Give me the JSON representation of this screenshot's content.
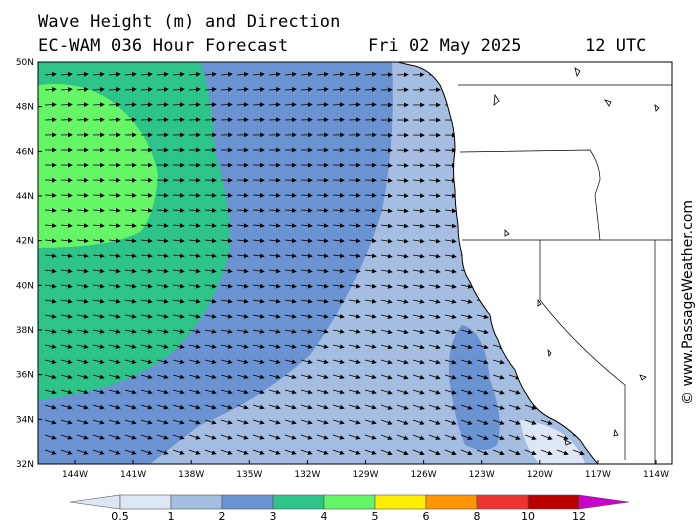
{
  "header": {
    "title": "Wave Height (m) and Direction",
    "subtitle": "EC-WAM 036 Hour Forecast",
    "date": "Fri 02 May 2025",
    "time": "12 UTC"
  },
  "map": {
    "lat_labels": [
      "50N",
      "48N",
      "46N",
      "44N",
      "42N",
      "40N",
      "38N",
      "36N",
      "34N",
      "32N"
    ],
    "lon_labels": [
      "144W",
      "141W",
      "138W",
      "135W",
      "132W",
      "129W",
      "126W",
      "123W",
      "120W",
      "117W",
      "114W"
    ],
    "colors": {
      "band_0_5_1": "#dce6f4",
      "band_1_2": "#a4bde0",
      "band_2_3": "#6b93d2",
      "band_3_4": "#2ec389",
      "band_4_5": "#66f566",
      "land": "#ffffff"
    }
  },
  "legend": {
    "labels": [
      "0.5",
      "1",
      "2",
      "3",
      "4",
      "5",
      "6",
      "8",
      "10",
      "12"
    ],
    "colors": [
      "#dce6f4",
      "#a4bde0",
      "#6b93d2",
      "#2ec389",
      "#66f566",
      "#ffee00",
      "#ff9500",
      "#ee3333",
      "#bb0000",
      "#cc00cc"
    ]
  },
  "credit": "© www.PassageWeather.com"
}
